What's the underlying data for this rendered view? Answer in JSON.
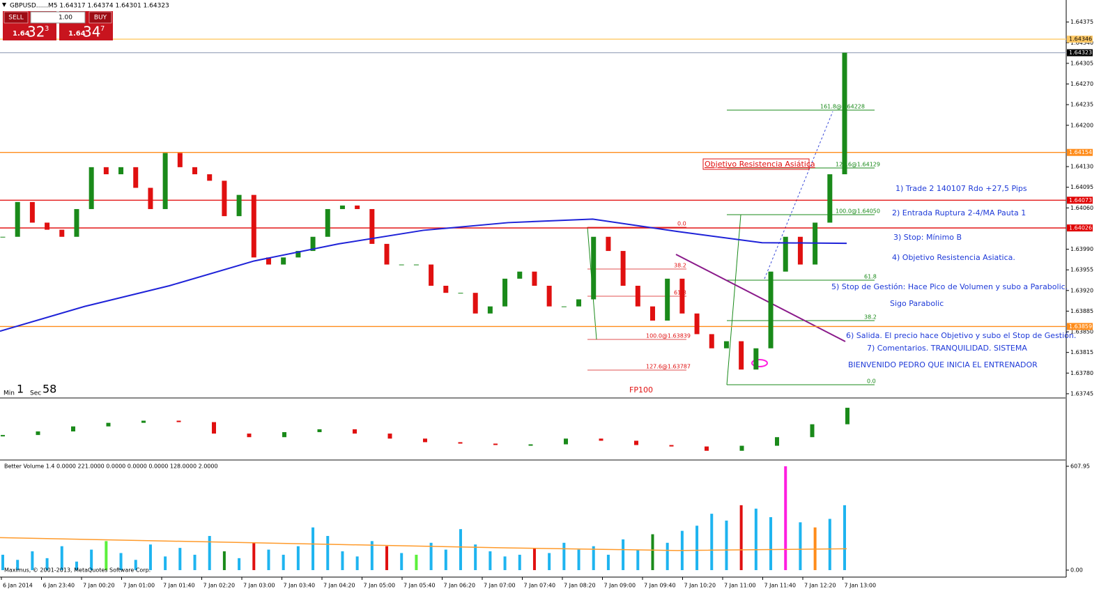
{
  "header": {
    "symbol_line": "GBPUSD......M5  1.64317 1.64374 1.64301 1.64323"
  },
  "trade_panel": {
    "sell": "SELL",
    "lots": "1.00",
    "buy": "BUY",
    "sell_price": {
      "big": "1.64",
      "pips": "32",
      "fraction": "3"
    },
    "buy_price": {
      "big": "1.64",
      "pips": "34",
      "fraction": "7"
    }
  },
  "main_panel": {
    "ylim": [
      1.63739,
      1.6441
    ],
    "yticks": [
      1.64375,
      {
        "value": 1.6434,
        "label": "1.64340"
      },
      1.64305,
      {
        "value": 1.6427,
        "label": "1.64270"
      },
      1.64235,
      {
        "value": 1.642,
        "label": "1.64200"
      },
      {
        "value": 1.6413,
        "label": "1.64130"
      },
      1.64095,
      {
        "value": 1.6406,
        "label": "1.64060"
      },
      {
        "value": 1.6399,
        "label": "1.63990"
      },
      1.63955,
      {
        "value": 1.6392,
        "label": "1.63920"
      },
      1.63885,
      {
        "value": 1.6385,
        "label": "1.63850"
      },
      1.63815,
      {
        "value": 1.6378,
        "label": "1.63780"
      },
      1.63745
    ],
    "levels": [
      {
        "value": 1.64346,
        "color": "#ffc966"
      },
      {
        "value": 1.64323,
        "color": "#a0aac0"
      },
      {
        "value": 1.64154,
        "color": "#ff8c1a"
      },
      {
        "value": 1.64073,
        "color": "#e00000"
      },
      {
        "value": 1.64026,
        "color": "#e00000"
      },
      {
        "value": 1.63859,
        "color": "#ff8c1a"
      }
    ],
    "closes": [
      1.64011,
      1.6407,
      1.64035,
      1.64023,
      1.64011,
      1.64058,
      1.64129,
      1.64117,
      1.64129,
      1.64094,
      1.64058,
      1.64153,
      1.64129,
      1.64117,
      1.64106,
      1.64046,
      1.64082,
      1.63976,
      1.63964,
      1.63976,
      1.63987,
      1.64011,
      1.64058,
      1.64064,
      1.64058,
      1.63999,
      1.63964,
      1.63964,
      1.63964,
      1.63928,
      1.63916,
      1.63916,
      1.63881,
      1.63893,
      1.6394,
      1.63952,
      1.63928,
      1.63893,
      1.63893,
      1.63905,
      1.64011,
      1.63987,
      1.63928,
      1.63893,
      1.63869,
      1.6394,
      1.63881,
      1.63846,
      1.63822,
      1.63834,
      1.63786,
      1.63822,
      1.63952,
      1.64011,
      1.63964,
      1.64035,
      1.64117,
      1.64323
    ],
    "ma": [
      1.63851,
      1.63893,
      1.63928,
      1.6397,
      1.63999,
      1.64022,
      1.64035,
      1.64041,
      1.6402,
      1.64001,
      1.64
    ],
    "annotations": {
      "target_box": "Objetivo Resistencia Asiática",
      "notes": [
        "1) Trade 2 140107 Rdo +27,5 Pips",
        "2) Entrada Ruptura 2-4/MA Pauta 1",
        "3) Stop: Mínimo B",
        "4) Objetivo Resistencia Asiatica.",
        "5) Stop de Gestión: Hace Pico de Volumen y subo a Parabolic.",
        "Sigo Parabolic",
        "6) Salida. El precio hace Objetivo y subo el Stop de Gestión.",
        "7) Comentarios. TRANQUILIDAD. SISTEMA",
        "BIENVENIDO PEDRO QUE INICIA EL ENTRENADOR"
      ],
      "fp": "FP100",
      "fib_red": [
        "0.0",
        "38.2",
        "61.8",
        "100.0@1.63839",
        "127.6@1.63787"
      ],
      "fib_green": [
        "161.8@1.64228",
        "127.6@1.64129",
        "100.0@1.64050",
        "61.8",
        "38.2",
        "0.0"
      ]
    },
    "timer": {
      "min_label": "Min",
      "min": 1,
      "sec_label": "Sec",
      "sec": 58
    }
  },
  "oscillator": {
    "ylim": [
      -30,
      40
    ],
    "values": [
      0,
      5,
      12,
      17,
      20,
      18,
      2,
      -3,
      4,
      8,
      2,
      -5,
      -10,
      -12,
      -13,
      -13,
      -5,
      -8,
      -14,
      -16,
      -22,
      -15,
      -3,
      15,
      38
    ]
  },
  "volume_panel": {
    "title": "Better Volume 1.4 0.0000 221.0000 0.0000 0.0000 0.0000 128.0000 2.0000",
    "ylim": [
      0,
      607.95
    ],
    "yticks": [
      607.95,
      {
        "value": 0,
        "label": "0.00"
      }
    ],
    "values": [
      90,
      60,
      110,
      70,
      140,
      50,
      120,
      170,
      100,
      60,
      150,
      80,
      130,
      90,
      200,
      110,
      70,
      160,
      120,
      90,
      140,
      250,
      200,
      110,
      80,
      170,
      140,
      100,
      90,
      160,
      120,
      240,
      150,
      110,
      80,
      90,
      130,
      100,
      160,
      120,
      140,
      90,
      180,
      120,
      210,
      160,
      230,
      260,
      330,
      290,
      380,
      360,
      310,
      607.95,
      280,
      250,
      300,
      380
    ],
    "colors": [
      "#1eb4f0",
      "#1eb4f0",
      "#1eb4f0",
      "#1eb4f0",
      "#1eb4f0",
      "#1eb4f0",
      "#1eb4f0",
      "#5cf03c",
      "#1eb4f0",
      "#1eb4f0",
      "#1eb4f0",
      "#1eb4f0",
      "#1eb4f0",
      "#1eb4f0",
      "#1eb4f0",
      "#1a8a1a",
      "#1eb4f0",
      "#e01010",
      "#1eb4f0",
      "#1eb4f0",
      "#1eb4f0",
      "#1eb4f0",
      "#1eb4f0",
      "#1eb4f0",
      "#1eb4f0",
      "#1eb4f0",
      "#e01010",
      "#1eb4f0",
      "#5cf03c",
      "#1eb4f0",
      "#1eb4f0",
      "#1eb4f0",
      "#1eb4f0",
      "#1eb4f0",
      "#1eb4f0",
      "#1eb4f0",
      "#e01010",
      "#1eb4f0",
      "#1eb4f0",
      "#1eb4f0",
      "#1eb4f0",
      "#1eb4f0",
      "#1eb4f0",
      "#1eb4f0",
      "#1a8a1a",
      "#1eb4f0",
      "#1eb4f0",
      "#1eb4f0",
      "#1eb4f0",
      "#1eb4f0",
      "#e01010",
      "#1eb4f0",
      "#1eb4f0",
      "#ff1ee0",
      "#1eb4f0",
      "#ff8c1a",
      "#1eb4f0",
      "#1eb4f0"
    ],
    "average": [
      190,
      170,
      150,
      130,
      115,
      125
    ]
  },
  "x_axis": {
    "labels": [
      "6 Jan 2014",
      "6 Jan 23:40",
      "7 Jan 00:20",
      "7 Jan 01:00",
      "7 Jan 01:40",
      "7 Jan 02:20",
      "7 Jan 03:00",
      "7 Jan 03:40",
      "7 Jan 04:20",
      "7 Jan 05:00",
      "7 Jan 05:40",
      "7 Jan 06:20",
      "7 Jan 07:00",
      "7 Jan 07:40",
      "7 Jan 08:20",
      "7 Jan 09:00",
      "7 Jan 09:40",
      "7 Jan 10:20",
      "7 Jan 11:00",
      "7 Jan 11:40",
      "7 Jan 12:20",
      "7 Jan 13:00"
    ]
  },
  "footer": "Maximus, © 2001-2013, MetaQuotes Software Corp."
}
